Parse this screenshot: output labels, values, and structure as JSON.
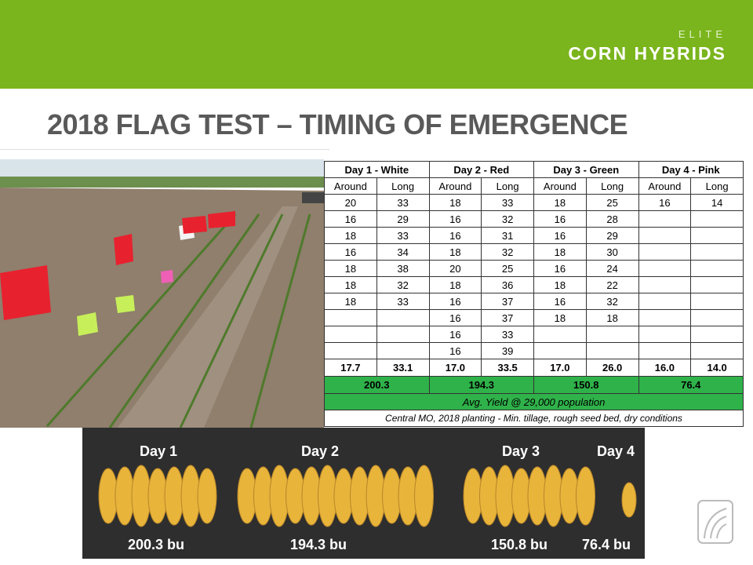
{
  "header": {
    "brand_small": "ELITE",
    "brand_big": "CORN HYBRIDS"
  },
  "title": "2018 FLAG TEST – TIMING OF EMERGENCE",
  "table": {
    "groups": [
      "Day 1 - White",
      "Day 2 - Red",
      "Day 3 - Green",
      "Day 4 - Pink"
    ],
    "subheaders": [
      "Around",
      "Long",
      "Around",
      "Long",
      "Around",
      "Long",
      "Around",
      "Long"
    ],
    "rows": [
      [
        20,
        33,
        18,
        33,
        18,
        25,
        16,
        14
      ],
      [
        16,
        29,
        16,
        32,
        16,
        28,
        null,
        null
      ],
      [
        18,
        33,
        16,
        31,
        16,
        29,
        null,
        null
      ],
      [
        16,
        34,
        18,
        32,
        18,
        30,
        null,
        null
      ],
      [
        18,
        38,
        20,
        25,
        16,
        24,
        null,
        null
      ],
      [
        18,
        32,
        18,
        36,
        18,
        22,
        null,
        null
      ],
      [
        18,
        33,
        16,
        37,
        16,
        32,
        null,
        null
      ],
      [
        null,
        null,
        16,
        37,
        18,
        18,
        null,
        null
      ],
      [
        null,
        null,
        16,
        33,
        null,
        null,
        null,
        null
      ],
      [
        null,
        null,
        16,
        39,
        null,
        null,
        null,
        null
      ]
    ],
    "averages": [
      "17.7",
      "33.1",
      "17.0",
      "33.5",
      "17.0",
      "26.0",
      "16.0",
      "14.0"
    ],
    "yields": [
      "200.3",
      "194.3",
      "150.8",
      "76.4"
    ],
    "yield_note": "Avg. Yield @ 29,000 population",
    "footnote": "Central MO, 2018 planting - Min. tillage, rough seed bed, dry conditions"
  },
  "photo": {
    "days": [
      "Day 1",
      "Day 2",
      "Day 3",
      "Day 4"
    ],
    "yields": [
      "200.3 bu",
      "194.3 bu",
      "150.8 bu",
      "76.4 bu"
    ]
  }
}
